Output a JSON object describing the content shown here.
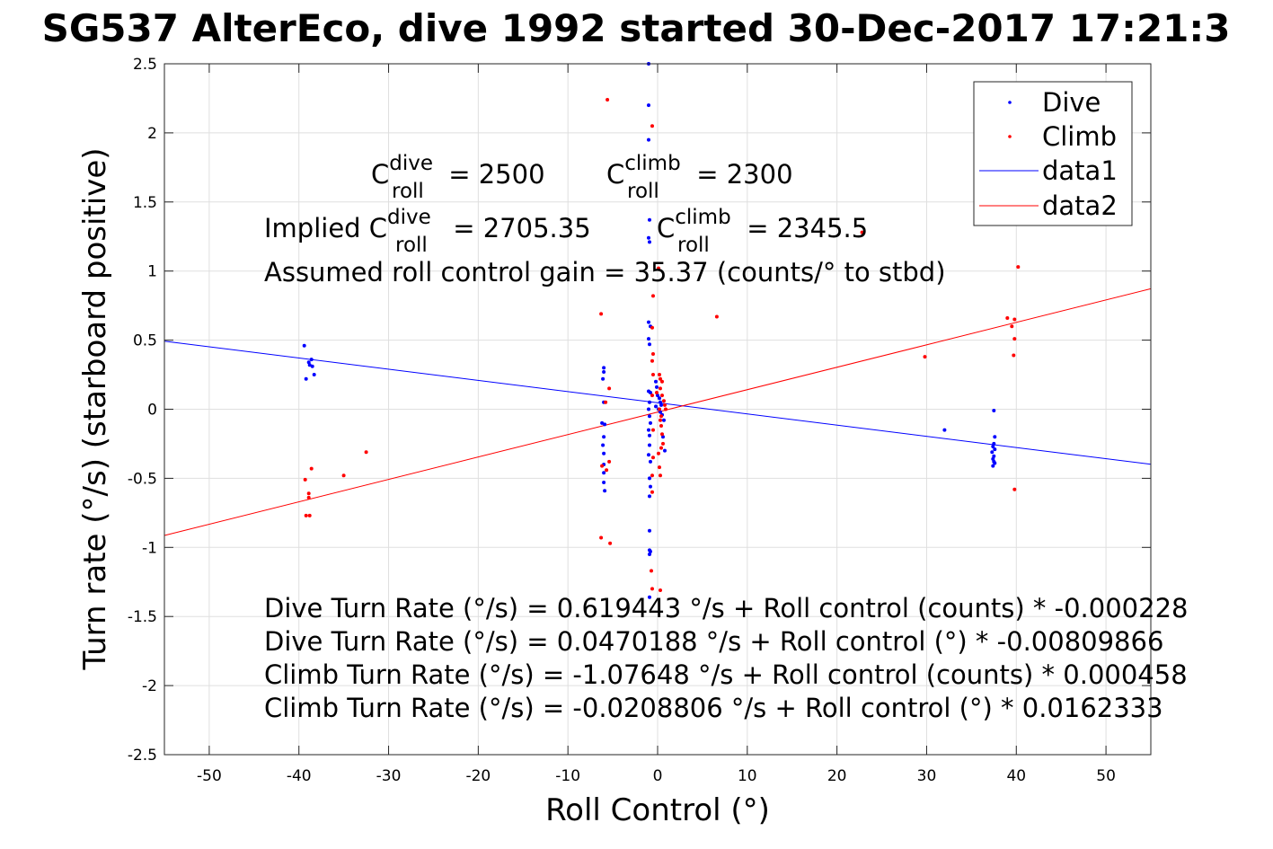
{
  "chart_data": {
    "type": "scatter",
    "title": "SG537 AlterEco, dive 1992 started 30-Dec-2017 17:21:3",
    "xlabel": "Roll Control (°)",
    "ylabel": "Turn rate (°/s) (starboard positive)",
    "xlim": [
      -55,
      55
    ],
    "ylim": [
      -2.5,
      2.5
    ],
    "xticks": [
      -50,
      -40,
      -30,
      -20,
      -10,
      0,
      10,
      20,
      30,
      40,
      50
    ],
    "yticks": [
      -2.5,
      -2,
      -1.5,
      -1,
      -0.5,
      0,
      0.5,
      1,
      1.5,
      2,
      2.5
    ],
    "grid": true,
    "legend_location": "top-right",
    "series": [
      {
        "name": "Dive",
        "kind": "points",
        "color": "#0000ff",
        "points": [
          [
            -39.4,
            0.46
          ],
          [
            -39.2,
            0.22
          ],
          [
            -38.9,
            0.34
          ],
          [
            -38.8,
            0.32
          ],
          [
            -38.6,
            0.36
          ],
          [
            -38.5,
            0.31
          ],
          [
            -38.3,
            0.25
          ],
          [
            -6.0,
            0.3
          ],
          [
            -6.0,
            0.27
          ],
          [
            -6.1,
            0.22
          ],
          [
            -6.0,
            0.05
          ],
          [
            -6.2,
            -0.1
          ],
          [
            -5.9,
            -0.11
          ],
          [
            -6.0,
            -0.2
          ],
          [
            -6.1,
            -0.26
          ],
          [
            -6.0,
            -0.32
          ],
          [
            -6.0,
            -0.4
          ],
          [
            -6.0,
            -0.46
          ],
          [
            -6.0,
            -0.53
          ],
          [
            -5.9,
            -0.59
          ],
          [
            -1.0,
            2.5
          ],
          [
            -1.0,
            2.2
          ],
          [
            -1.0,
            1.95
          ],
          [
            -0.9,
            1.37
          ],
          [
            -1.0,
            1.24
          ],
          [
            -0.9,
            1.21
          ],
          [
            -1.0,
            0.63
          ],
          [
            -0.8,
            0.6
          ],
          [
            -1.0,
            0.51
          ],
          [
            -0.9,
            0.47
          ],
          [
            -1.0,
            0.13
          ],
          [
            -0.8,
            0.12
          ],
          [
            -0.9,
            0.05
          ],
          [
            -1.0,
            0.0
          ],
          [
            -0.9,
            -0.05
          ],
          [
            -0.8,
            -0.1
          ],
          [
            -1.0,
            -0.15
          ],
          [
            -0.9,
            -0.19
          ],
          [
            -0.9,
            -0.26
          ],
          [
            -1.0,
            -0.33
          ],
          [
            -0.8,
            -0.38
          ],
          [
            -0.9,
            -0.5
          ],
          [
            -0.8,
            -0.56
          ],
          [
            -0.9,
            -0.63
          ],
          [
            -0.9,
            -0.88
          ],
          [
            -0.9,
            -1.02
          ],
          [
            -0.8,
            -1.03
          ],
          [
            -0.9,
            -1.05
          ],
          [
            -0.9,
            -1.36
          ],
          [
            -0.2,
            0.2
          ],
          [
            -0.1,
            0.16
          ],
          [
            0.0,
            0.1
          ],
          [
            0.2,
            0.08
          ],
          [
            0.3,
            0.05
          ],
          [
            0.4,
            0.03
          ],
          [
            -0.2,
            0.02
          ],
          [
            0.1,
            0.0
          ],
          [
            0.3,
            -0.02
          ],
          [
            0.5,
            -0.04
          ],
          [
            0.7,
            -0.08
          ],
          [
            0.6,
            -0.2
          ],
          [
            0.8,
            -0.3
          ],
          [
            32.0,
            -0.15
          ],
          [
            37.5,
            -0.01
          ],
          [
            37.6,
            -0.2
          ],
          [
            37.5,
            -0.25
          ],
          [
            37.4,
            -0.27
          ],
          [
            37.6,
            -0.29
          ],
          [
            37.3,
            -0.31
          ],
          [
            37.5,
            -0.34
          ],
          [
            37.4,
            -0.36
          ],
          [
            37.5,
            -0.38
          ],
          [
            37.6,
            -0.39
          ],
          [
            37.4,
            -0.41
          ]
        ]
      },
      {
        "name": "Climb",
        "kind": "points",
        "color": "#ff0000",
        "points": [
          [
            -39.3,
            -0.51
          ],
          [
            -39.2,
            -0.77
          ],
          [
            -38.9,
            -0.61
          ],
          [
            -38.9,
            -0.64
          ],
          [
            -38.8,
            -0.77
          ],
          [
            -38.6,
            -0.43
          ],
          [
            -35.0,
            -0.48
          ],
          [
            -32.5,
            -0.31
          ],
          [
            -6.3,
            0.69
          ],
          [
            -6.2,
            -0.41
          ],
          [
            -6.3,
            -0.93
          ],
          [
            -5.8,
            0.05
          ],
          [
            -5.7,
            -0.44
          ],
          [
            -5.4,
            0.15
          ],
          [
            -5.4,
            -0.38
          ],
          [
            -5.3,
            -0.97
          ],
          [
            -5.6,
            2.24
          ],
          [
            -0.6,
            2.05
          ],
          [
            -0.6,
            0.35
          ],
          [
            -0.6,
            0.59
          ],
          [
            -0.5,
            0.82
          ],
          [
            -0.5,
            0.4
          ],
          [
            -0.5,
            0.25
          ],
          [
            -0.6,
            0.1
          ],
          [
            -0.5,
            -0.15
          ],
          [
            -0.5,
            -0.35
          ],
          [
            -0.6,
            -0.48
          ],
          [
            -0.6,
            -0.6
          ],
          [
            -0.7,
            -1.17
          ],
          [
            -0.6,
            -1.3
          ],
          [
            0.1,
            1.02
          ],
          [
            0.1,
            -0.32
          ],
          [
            0.2,
            -0.42
          ],
          [
            0.3,
            -0.48
          ],
          [
            0.4,
            -0.28
          ],
          [
            0.4,
            -0.12
          ],
          [
            0.2,
            0.25
          ],
          [
            0.3,
            0.22
          ],
          [
            0.5,
            0.2
          ],
          [
            0.3,
            0.15
          ],
          [
            0.5,
            0.1
          ],
          [
            0.7,
            0.06
          ],
          [
            0.8,
            0.03
          ],
          [
            0.9,
            0.0
          ],
          [
            0.2,
            0.0
          ],
          [
            0.4,
            -0.05
          ],
          [
            0.5,
            -0.18
          ],
          [
            -0.1,
            0.12
          ],
          [
            0.3,
            -0.08
          ],
          [
            0.6,
            -0.25
          ],
          [
            0.3,
            -1.31
          ],
          [
            6.6,
            0.67
          ],
          [
            22.8,
            1.28
          ],
          [
            29.8,
            0.38
          ],
          [
            39.0,
            0.66
          ],
          [
            39.5,
            0.6
          ],
          [
            39.8,
            0.65
          ],
          [
            39.8,
            0.51
          ],
          [
            39.7,
            0.39
          ],
          [
            39.8,
            -0.58
          ],
          [
            40.2,
            1.03
          ]
        ]
      },
      {
        "name": "data1",
        "kind": "line",
        "color": "#0000ff",
        "x": [
          -55,
          55
        ],
        "y": [
          0.4924,
          -0.3984
        ]
      },
      {
        "name": "data2",
        "kind": "line",
        "color": "#ff0000",
        "x": [
          -55,
          55
        ],
        "y": [
          -0.9137,
          0.8719
        ]
      }
    ],
    "annotations": {
      "c_roll_dive": {
        "prefix": "C",
        "sup": "dive",
        "sub": "roll",
        "value": " = 2500"
      },
      "c_roll_climb": {
        "prefix": "C",
        "sup": "climb",
        "sub": "roll",
        "value": " = 2300"
      },
      "implied_dive": {
        "lead": "Implied C",
        "sup": "dive",
        "sub": "roll",
        "value": " = 2705.35"
      },
      "implied_climb": {
        "prefix": "C",
        "sup": "climb",
        "sub": "roll",
        "value": " = 2345.5"
      },
      "gain": "Assumed roll control gain = 35.37 (counts/° to stbd)",
      "eq1": "Dive Turn Rate (°/s) = 0.619443 °/s + Roll control (counts) * -0.000228",
      "eq2": "Dive Turn Rate (°/s) = 0.0470188 °/s + Roll control (°) * -0.00809866",
      "eq3": "Climb Turn Rate (°/s) = -1.07648 °/s + Roll control (counts) * 0.000458",
      "eq4": "Climb Turn Rate (°/s) = -0.0208806 °/s + Roll control (°) * 0.0162333"
    }
  }
}
